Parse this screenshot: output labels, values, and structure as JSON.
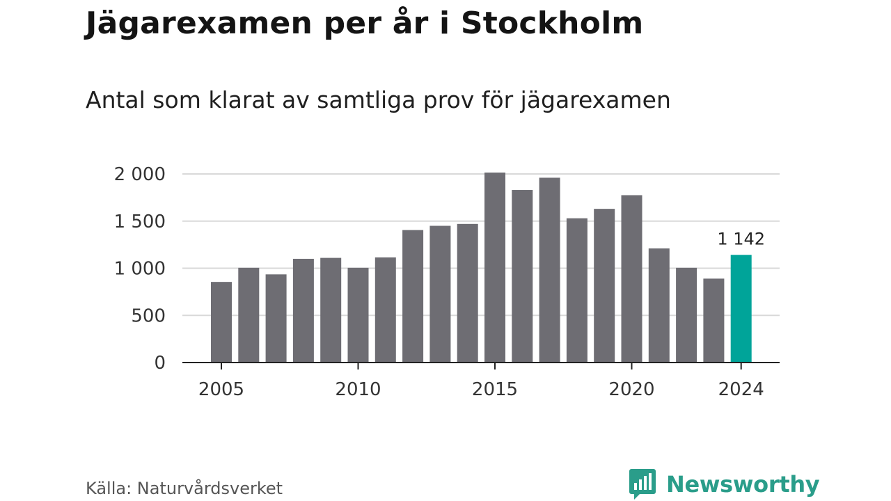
{
  "title": "Jägarexamen per år i Stockholm",
  "subtitle": "Antal som klarat av samtliga prov för jägarexamen",
  "source": "Källa: Naturvårdsverket",
  "brand": {
    "name": "Newsworthy",
    "icon": "newsworthy-logo-icon",
    "color": "#2a9d8a"
  },
  "colors": {
    "bar": "#6e6d73",
    "highlight": "#00a499",
    "grid": "#d9d9d9",
    "axis": "#222222"
  },
  "chart_data": {
    "type": "bar",
    "title": "Jägarexamen per år i Stockholm",
    "subtitle": "Antal som klarat av samtliga prov för jägarexamen",
    "xlabel": "",
    "ylabel": "",
    "categories": [
      2005,
      2006,
      2007,
      2008,
      2009,
      2010,
      2011,
      2012,
      2013,
      2014,
      2015,
      2016,
      2017,
      2018,
      2019,
      2020,
      2021,
      2022,
      2023,
      2024
    ],
    "values": [
      855,
      1005,
      935,
      1100,
      1110,
      1005,
      1115,
      1405,
      1450,
      1470,
      2015,
      1830,
      1960,
      1530,
      1630,
      1775,
      1210,
      1005,
      890,
      1142
    ],
    "ylim": [
      0,
      2000
    ],
    "yticks": [
      0,
      500,
      1000,
      1500,
      2000
    ],
    "ytick_labels": [
      "0",
      "500",
      "1 000",
      "1 500",
      "2 000"
    ],
    "xticks": [
      2005,
      2010,
      2015,
      2020,
      2024
    ],
    "xtick_labels": [
      "2005",
      "2010",
      "2015",
      "2020",
      "2024"
    ],
    "highlight": {
      "category": 2024,
      "label": "1 142"
    },
    "grid": true,
    "legend": "none"
  }
}
